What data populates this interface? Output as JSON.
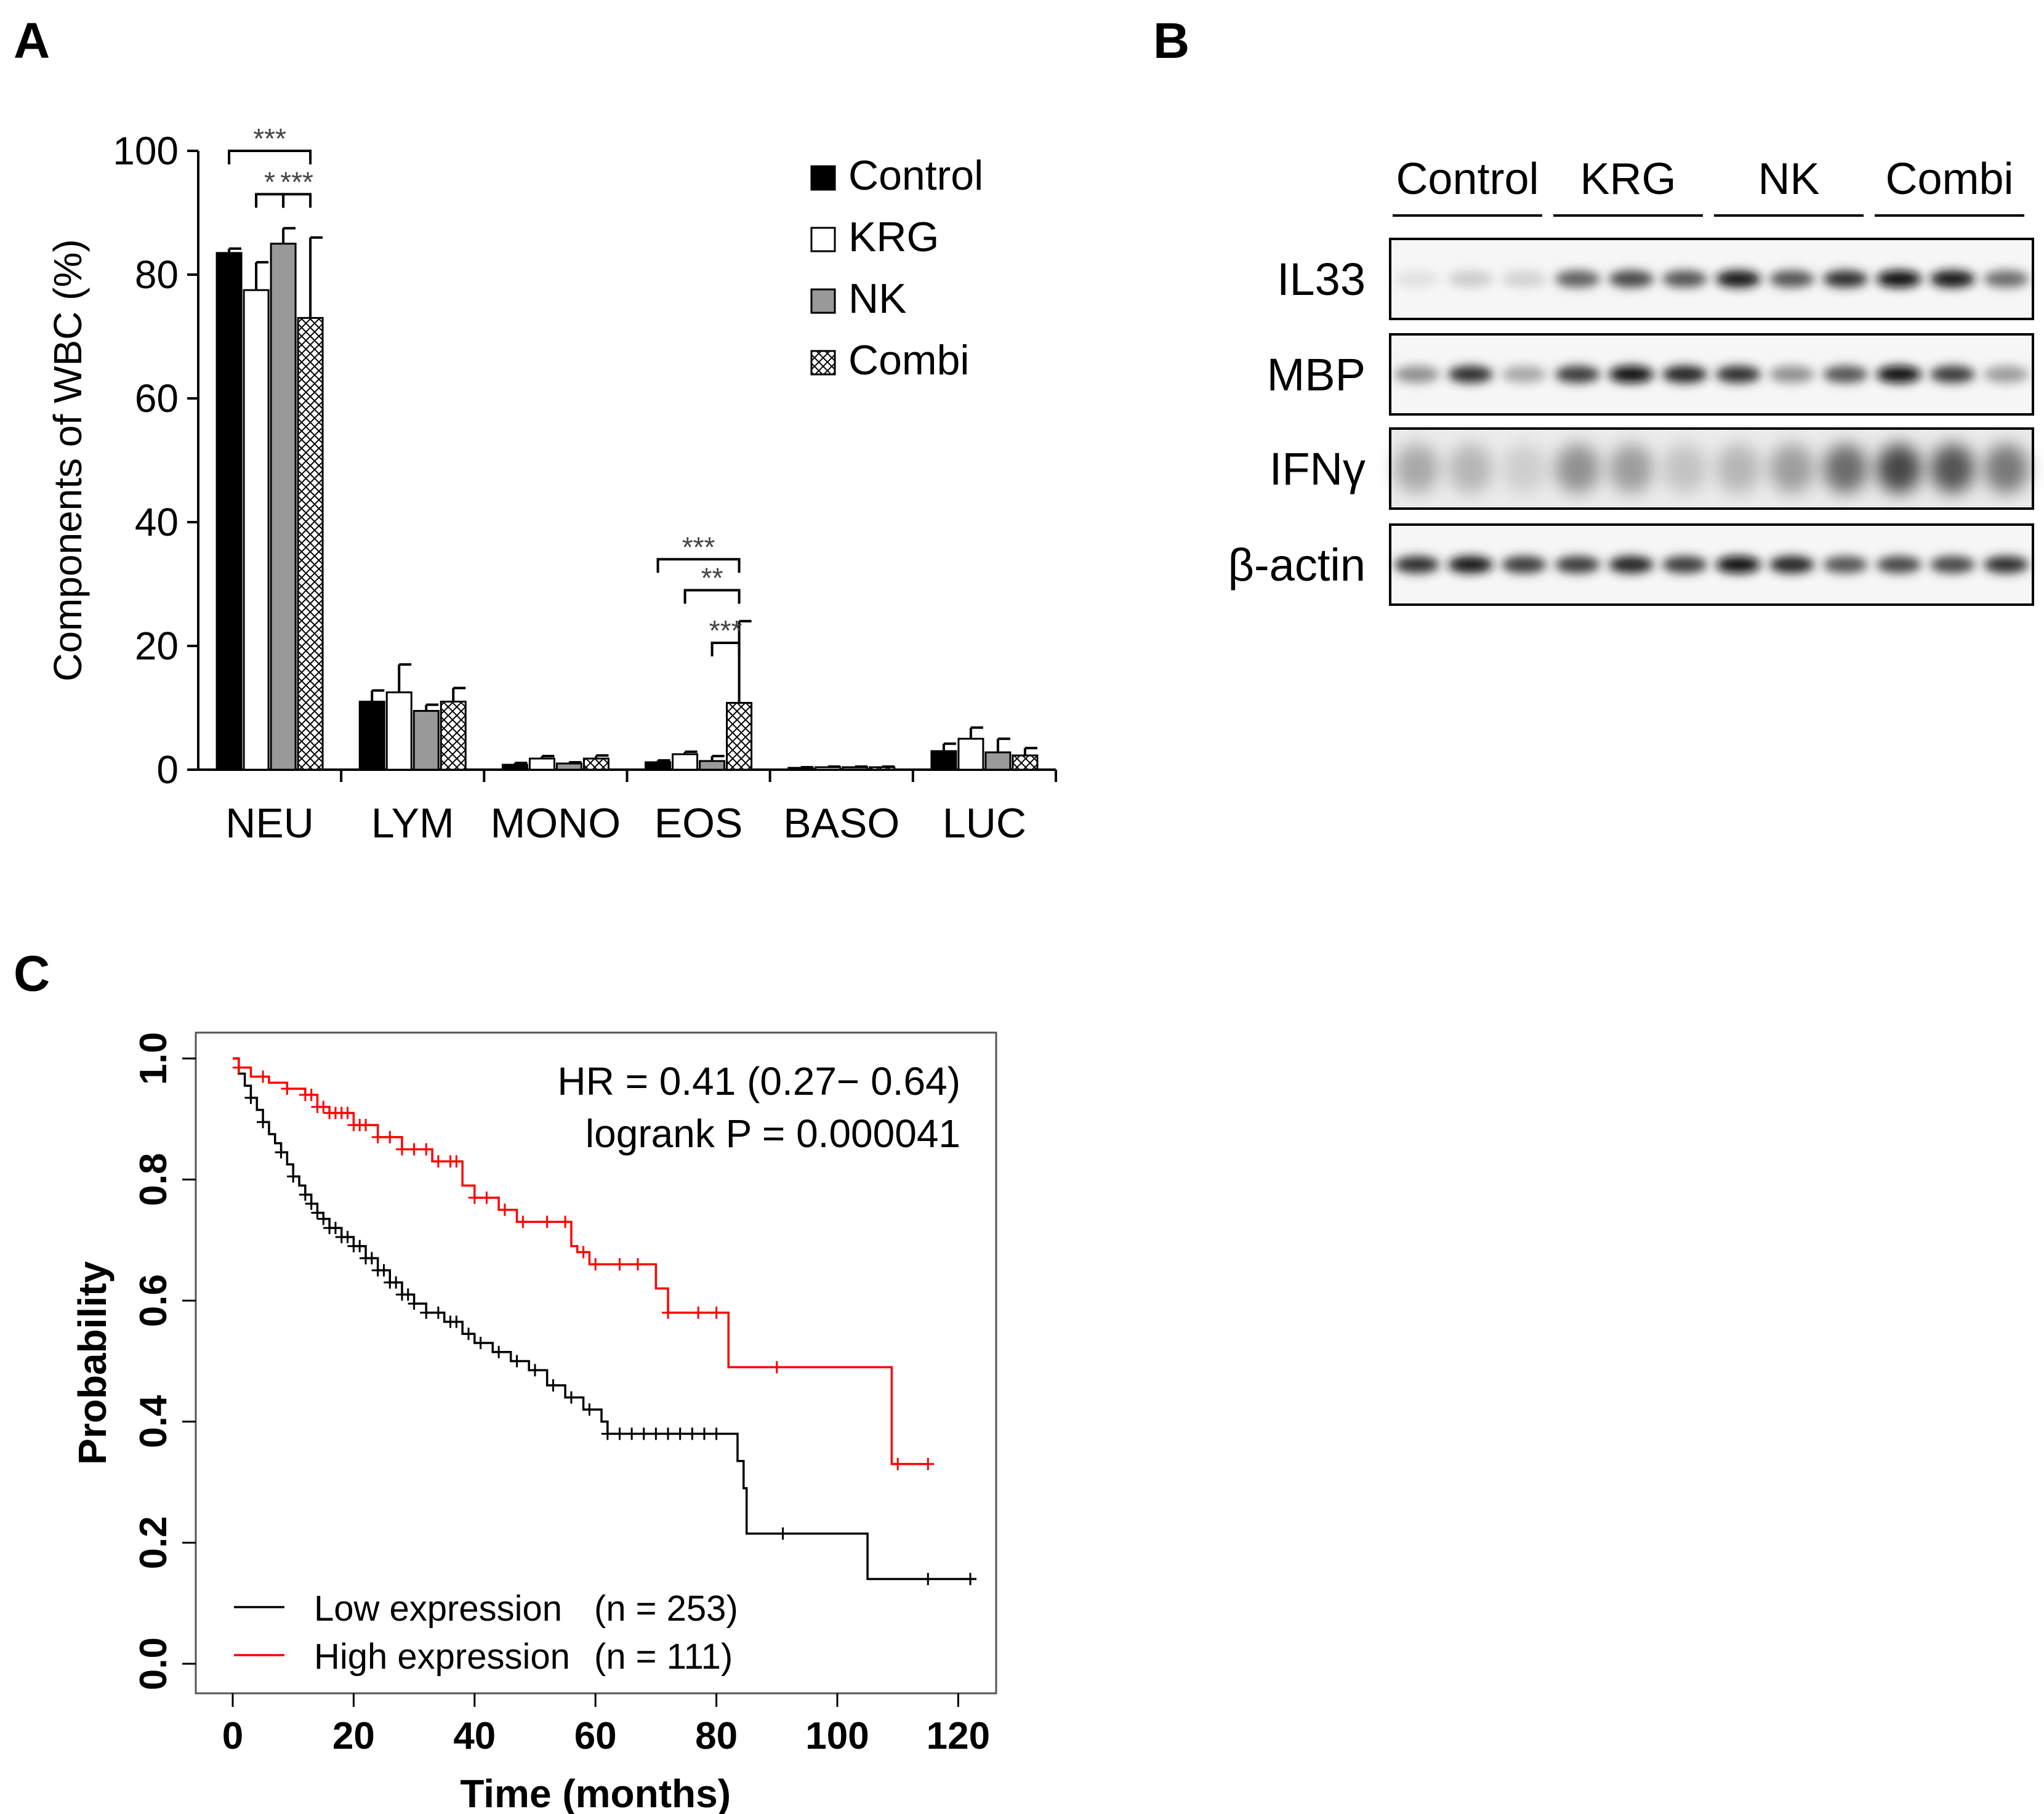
{
  "panels": {
    "a": "A",
    "b": "B",
    "c": "C"
  },
  "chart_data": [
    {
      "type": "bar",
      "panel": "A",
      "ylabel": "Components of WBC (%)",
      "ylim": [
        0,
        100
      ],
      "yticks": [
        0,
        20,
        40,
        60,
        80,
        100
      ],
      "categories": [
        "NEU",
        "LYM",
        "MONO",
        "EOS",
        "BASO",
        "LUC"
      ],
      "series": [
        {
          "name": "Control",
          "values": [
            83.5,
            11,
            0.8,
            1.2,
            0.3,
            3
          ],
          "errors": [
            0.7,
            1.8,
            0.3,
            0.3,
            0.1,
            1.2
          ],
          "fill": "#000000",
          "pattern": "solid"
        },
        {
          "name": "KRG",
          "values": [
            77.5,
            12.5,
            1.8,
            2.5,
            0.4,
            5
          ],
          "errors": [
            4.5,
            4.5,
            0.4,
            0.4,
            0.1,
            1.8
          ],
          "fill": "#ffffff",
          "pattern": "solid"
        },
        {
          "name": "NK",
          "values": [
            85,
            9.5,
            1,
            1.4,
            0.4,
            2.8
          ],
          "errors": [
            2.5,
            1,
            0.2,
            0.8,
            0.1,
            2.2
          ],
          "fill": "#999999",
          "pattern": "solid"
        },
        {
          "name": "Combi",
          "values": [
            73,
            11,
            1.8,
            10.8,
            0.4,
            2.3
          ],
          "errors": [
            13,
            2.2,
            0.5,
            13.2,
            0.1,
            1.2
          ],
          "fill": "#ffffff",
          "pattern": "crosshatch"
        }
      ],
      "significance": [
        {
          "category": "NEU",
          "from": "Control",
          "to": "Combi",
          "label": "***",
          "level": 0
        },
        {
          "category": "NEU",
          "from": "KRG",
          "to": "NK",
          "label": "*",
          "level": 1
        },
        {
          "category": "NEU",
          "from": "NK",
          "to": "Combi",
          "label": "***",
          "level": 1
        },
        {
          "category": "EOS",
          "from": "Control",
          "to": "Combi",
          "label": "***",
          "level": 0
        },
        {
          "category": "EOS",
          "from": "KRG",
          "to": "Combi",
          "label": "**",
          "level": 1
        },
        {
          "category": "EOS",
          "from": "NK",
          "to": "Combi",
          "label": "***",
          "level": 2
        }
      ],
      "legend_position": "top-right"
    },
    {
      "type": "line",
      "panel": "C",
      "title": "",
      "xlabel": "Time (months)",
      "ylabel": "Probability",
      "xlim": [
        0,
        125
      ],
      "ylim": [
        0,
        1.0
      ],
      "xticks": [
        0,
        20,
        40,
        60,
        80,
        100,
        120
      ],
      "yticks": [
        "0.0",
        "0.2",
        "0.4",
        "0.6",
        "0.8",
        "1.0"
      ],
      "annotations": [
        "HR = 0.41 (0.27− 0.64)",
        "logrank P = 0.000041"
      ],
      "series": [
        {
          "name": "Low expression",
          "n_label": "(n = 253)",
          "color": "#000000",
          "x": [
            0,
            1,
            2,
            3,
            4,
            5,
            6,
            7,
            8,
            9,
            10,
            11,
            12,
            13,
            14,
            15,
            16,
            18,
            20,
            22,
            24,
            26,
            28,
            30,
            32,
            35,
            38,
            40,
            43,
            46,
            49,
            52,
            55,
            58,
            61,
            62,
            70,
            77,
            82,
            83.5,
            84.5,
            85,
            95,
            104,
            105,
            123
          ],
          "y": [
            1.0,
            0.975,
            0.955,
            0.935,
            0.915,
            0.895,
            0.875,
            0.86,
            0.845,
            0.825,
            0.805,
            0.79,
            0.775,
            0.76,
            0.745,
            0.735,
            0.72,
            0.705,
            0.69,
            0.67,
            0.65,
            0.63,
            0.61,
            0.595,
            0.58,
            0.565,
            0.545,
            0.53,
            0.515,
            0.5,
            0.485,
            0.46,
            0.44,
            0.42,
            0.4,
            0.38,
            0.38,
            0.38,
            0.38,
            0.335,
            0.29,
            0.215,
            0.215,
            0.215,
            0.14,
            0.14
          ],
          "censors": [
            3,
            5,
            8,
            10,
            12,
            13,
            14,
            15,
            16,
            17,
            18,
            19,
            20,
            21,
            22,
            23,
            24,
            25,
            26,
            27,
            28,
            29,
            30,
            32,
            34,
            36,
            37,
            39,
            41,
            44,
            47,
            50,
            53,
            56,
            59,
            62,
            64,
            66,
            68,
            70,
            72,
            74,
            76,
            78,
            80,
            91,
            115,
            122
          ]
        },
        {
          "name": "High expression",
          "n_label": "(n = 111)",
          "color": "#ff0000",
          "x": [
            0,
            1,
            3,
            6,
            9,
            12,
            14,
            16,
            20,
            24,
            28,
            33,
            37,
            38,
            40,
            44,
            47,
            50,
            54,
            56,
            57,
            59,
            65,
            70,
            72,
            80,
            82,
            89,
            100,
            108,
            109,
            115
          ],
          "y": [
            1.0,
            0.985,
            0.97,
            0.96,
            0.95,
            0.94,
            0.92,
            0.91,
            0.89,
            0.87,
            0.85,
            0.83,
            0.83,
            0.79,
            0.77,
            0.75,
            0.73,
            0.73,
            0.73,
            0.69,
            0.68,
            0.66,
            0.66,
            0.62,
            0.58,
            0.58,
            0.49,
            0.49,
            0.49,
            0.49,
            0.33,
            0.33
          ],
          "censors": [
            1,
            5,
            9,
            12,
            13,
            14,
            15,
            16,
            17,
            18,
            19,
            20,
            21,
            22,
            24,
            26,
            28,
            30,
            32,
            34,
            36,
            37,
            40,
            42,
            45,
            48,
            52,
            55,
            58,
            60,
            64,
            67,
            72,
            77,
            80,
            90,
            110,
            115
          ]
        }
      ],
      "legend_position": "bottom-left"
    }
  ],
  "western_blot": {
    "groups": [
      "Control",
      "KRG",
      "NK",
      "Combi"
    ],
    "rows": [
      {
        "label": "IL33",
        "intensities": [
          0.12,
          0.2,
          0.18,
          0.65,
          0.75,
          0.7,
          0.95,
          0.7,
          0.85,
          1.0,
          0.95,
          0.6
        ]
      },
      {
        "label": "MBP",
        "intensities": [
          0.45,
          0.85,
          0.35,
          0.8,
          1.0,
          0.9,
          0.85,
          0.45,
          0.7,
          1.0,
          0.8,
          0.4
        ]
      },
      {
        "label": "IFNγ",
        "intensities": [
          0.35,
          0.3,
          0.2,
          0.45,
          0.4,
          0.25,
          0.3,
          0.4,
          0.6,
          0.75,
          0.7,
          0.55
        ]
      },
      {
        "label": "β-actin",
        "intensities": [
          0.85,
          0.95,
          0.8,
          0.8,
          0.9,
          0.8,
          1.0,
          0.9,
          0.7,
          0.75,
          0.75,
          0.85
        ]
      }
    ]
  }
}
